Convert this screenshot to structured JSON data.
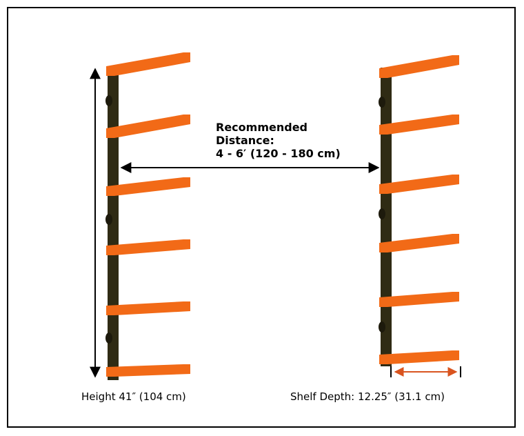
{
  "labels": {
    "distance_line1": "Recommended",
    "distance_line2": "Distance:",
    "distance_line3": "4 - 6′ (120 - 180 cm)",
    "height": "Height 41″ (104 cm)",
    "shelf_depth": "Shelf Depth: 12.25″ (31.1 cm)"
  },
  "colors": {
    "shelf_arm": "#f26a17",
    "post": "#2f2b14",
    "depth_arrow": "#d9541f",
    "arrow": "#000000"
  },
  "racks": [
    {
      "name": "left-rack",
      "shelf_count": 6
    },
    {
      "name": "right-rack",
      "shelf_count": 6
    }
  ]
}
